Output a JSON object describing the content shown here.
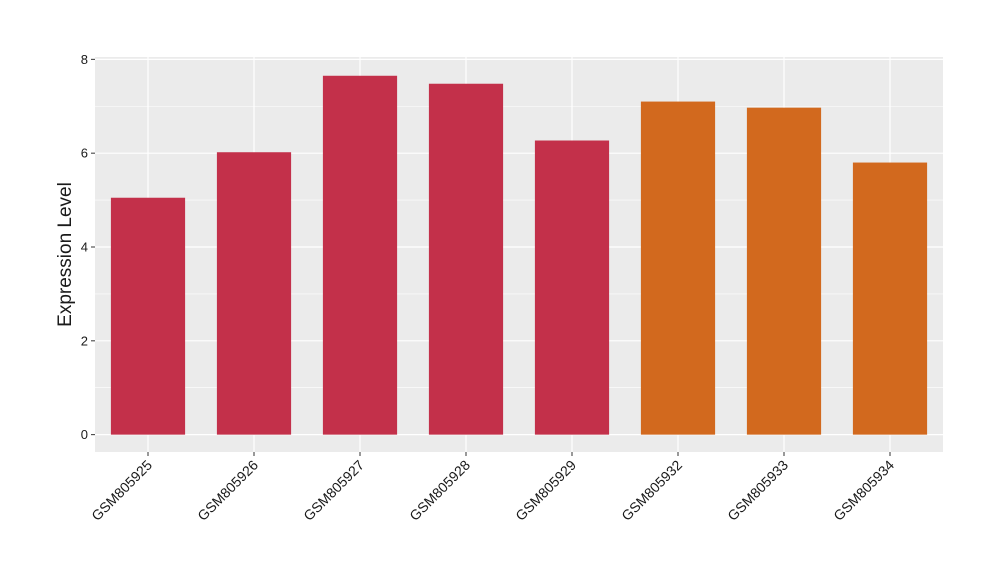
{
  "chart_data": {
    "type": "bar",
    "title": "",
    "xlabel": "",
    "ylabel": "Expression Level",
    "categories": [
      "GSM805925",
      "GSM805926",
      "GSM805927",
      "GSM805928",
      "GSM805929",
      "GSM805932",
      "GSM805933",
      "GSM805934"
    ],
    "values": [
      5.05,
      6.02,
      7.65,
      7.48,
      6.27,
      7.1,
      6.97,
      5.8
    ],
    "bar_colors": [
      "#c3304a",
      "#c3304a",
      "#c3304a",
      "#c3304a",
      "#c3304a",
      "#d2691e",
      "#d2691e",
      "#d2691e"
    ],
    "ylim": [
      -0.37,
      8.05
    ],
    "yticks": [
      0,
      2,
      4,
      6,
      8
    ],
    "grid": true,
    "panel_background": "#ebebeb",
    "grid_color": "#ffffff"
  }
}
